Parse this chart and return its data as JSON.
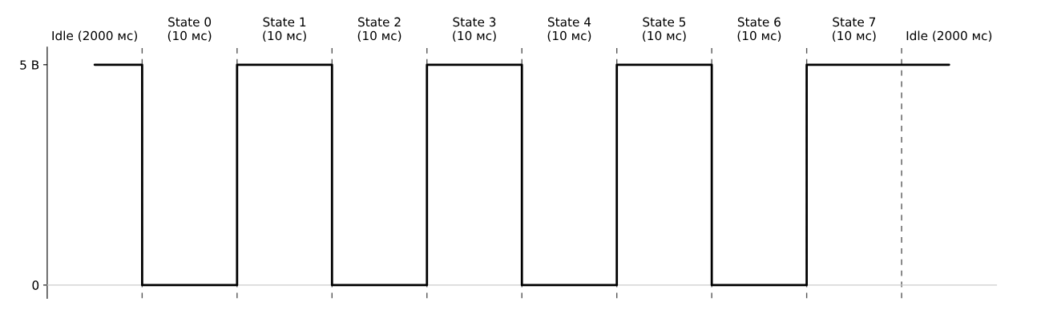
{
  "chart_data": {
    "type": "step",
    "categories": [
      "Idle (2000 мс)",
      "State 0\n(10 мс)",
      "State 1\n(10 мс)",
      "State 2\n(10 мс)",
      "State 3\n(10 мс)",
      "State 4\n(10 мс)",
      "State 5\n(10 мс)",
      "State 6\n(10 мс)",
      "State 7\n(10 мс)",
      "Idle (2000 мс)"
    ],
    "values": [
      5,
      0,
      5,
      0,
      5,
      0,
      5,
      0,
      5,
      5
    ],
    "color": "#000000",
    "ylim": [
      -0.3,
      5.4
    ],
    "yticks": [
      0,
      {
        "value": 5,
        "label": "5 В"
      }
    ],
    "grid": "x",
    "legend": false
  }
}
